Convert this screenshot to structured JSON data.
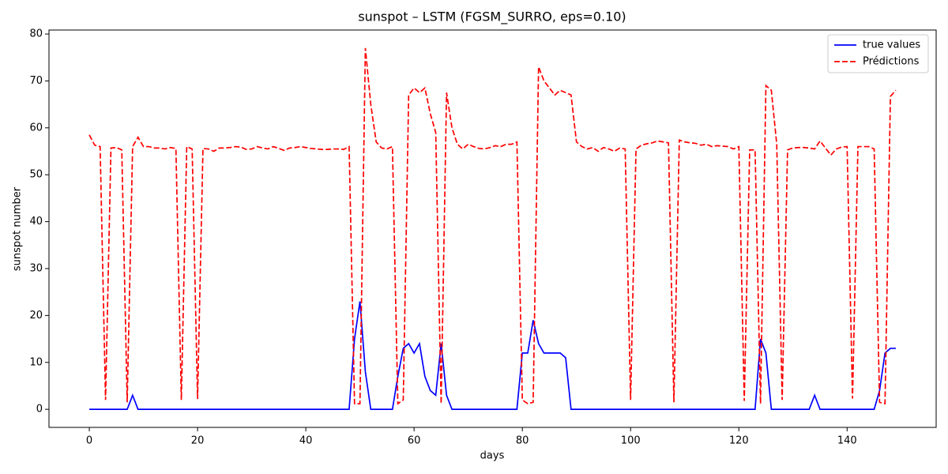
{
  "chart_data": {
    "type": "line",
    "title": "sunspot – LSTM (FGSM_SURRO, eps=0.10)",
    "x_label": "days",
    "y_label": "sunspot number",
    "x": [
      0,
      1,
      2,
      3,
      4,
      5,
      6,
      7,
      8,
      9,
      10,
      11,
      12,
      13,
      14,
      15,
      16,
      17,
      18,
      19,
      20,
      21,
      22,
      23,
      24,
      25,
      26,
      27,
      28,
      29,
      30,
      31,
      32,
      33,
      34,
      35,
      36,
      37,
      38,
      39,
      40,
      41,
      42,
      43,
      44,
      45,
      46,
      47,
      48,
      49,
      50,
      51,
      52,
      53,
      54,
      55,
      56,
      57,
      58,
      59,
      60,
      61,
      62,
      63,
      64,
      65,
      66,
      67,
      68,
      69,
      70,
      71,
      72,
      73,
      74,
      75,
      76,
      77,
      78,
      79,
      80,
      81,
      82,
      83,
      84,
      85,
      86,
      87,
      88,
      89,
      90,
      91,
      92,
      93,
      94,
      95,
      96,
      97,
      98,
      99,
      100,
      101,
      102,
      103,
      104,
      105,
      106,
      107,
      108,
      109,
      110,
      111,
      112,
      113,
      114,
      115,
      116,
      117,
      118,
      119,
      120,
      121,
      122,
      123,
      124,
      125,
      126,
      127,
      128,
      129,
      130,
      131,
      132,
      133,
      134,
      135,
      136,
      137,
      138,
      139,
      140,
      141,
      142,
      143,
      144,
      145,
      146,
      147,
      148,
      149
    ],
    "series": [
      {
        "name": "true values",
        "color": "#0000ff",
        "dash": "solid",
        "values": [
          0,
          0,
          0,
          0,
          0,
          0,
          0,
          0,
          3,
          0,
          0,
          0,
          0,
          0,
          0,
          0,
          0,
          0,
          0,
          0,
          0,
          0,
          0,
          0,
          0,
          0,
          0,
          0,
          0,
          0,
          0,
          0,
          0,
          0,
          0,
          0,
          0,
          0,
          0,
          0,
          0,
          0,
          0,
          0,
          0,
          0,
          0,
          0,
          0,
          15,
          23,
          8,
          0,
          0,
          0,
          0,
          0,
          7,
          13,
          14,
          12,
          14,
          7,
          4,
          3,
          14,
          3,
          0,
          0,
          0,
          0,
          0,
          0,
          0,
          0,
          0,
          0,
          0,
          0,
          0,
          12,
          12,
          19,
          14,
          12,
          12,
          12,
          12,
          11,
          0,
          0,
          0,
          0,
          0,
          0,
          0,
          0,
          0,
          0,
          0,
          0,
          0,
          0,
          0,
          0,
          0,
          0,
          0,
          0,
          0,
          0,
          0,
          0,
          0,
          0,
          0,
          0,
          0,
          0,
          0,
          0,
          0,
          0,
          0,
          15,
          12,
          0,
          0,
          0,
          0,
          0,
          0,
          0,
          0,
          3,
          0,
          0,
          0,
          0,
          0,
          0,
          0,
          0,
          0,
          0,
          0,
          4,
          12,
          13,
          13
        ]
      },
      {
        "name": "Prédictions",
        "color": "#ff0000",
        "dash": "dashed",
        "values": [
          58.5,
          56.3,
          56,
          2,
          55.7,
          55.8,
          55.3,
          1.5,
          56,
          58,
          56,
          56,
          55.7,
          55.7,
          55.5,
          55.8,
          55.6,
          2,
          56,
          55.5,
          2.2,
          55.6,
          55.5,
          55,
          55.7,
          55.7,
          55.8,
          56,
          55.9,
          55.4,
          55.5,
          56,
          55.7,
          55.5,
          56,
          55.6,
          55.2,
          55.7,
          55.8,
          56,
          55.8,
          55.6,
          55.5,
          55.4,
          55.4,
          55.5,
          55.5,
          55.4,
          56,
          1.2,
          1.2,
          77,
          65,
          57,
          55.7,
          55.5,
          56,
          1.2,
          2,
          67,
          68.5,
          67.5,
          68.5,
          63,
          59,
          1.2,
          67.5,
          60,
          56.5,
          55.5,
          56.5,
          56,
          55.6,
          55.5,
          55.8,
          56.2,
          56,
          56.5,
          56.5,
          57,
          2,
          1.2,
          1.5,
          73,
          70,
          68.5,
          67,
          68,
          67.5,
          67,
          57,
          56,
          55.5,
          55.8,
          55,
          55.8,
          55.5,
          55,
          55.7,
          55.5,
          2,
          55.5,
          56.3,
          56.6,
          56.8,
          57.2,
          57,
          56.8,
          1.5,
          57.4,
          57,
          56.8,
          56.7,
          56.3,
          56.5,
          56,
          56.2,
          56.1,
          56,
          55.5,
          56,
          1.8,
          55.3,
          55.3,
          1.2,
          69,
          68,
          56.5,
          2,
          55.3,
          55.7,
          55.8,
          55.8,
          55.7,
          55.5,
          57.2,
          55.7,
          54.2,
          55.5,
          55.9,
          56,
          2.3,
          56,
          56,
          56,
          55.5,
          1.5,
          1.2,
          66.7,
          68
        ]
      }
    ],
    "xlim": [
      -7.45,
      156.45
    ],
    "xticks": [
      0,
      20,
      40,
      60,
      80,
      100,
      120,
      140
    ],
    "ylim": [
      -3.85,
      80.85
    ],
    "yticks": [
      0,
      10,
      20,
      30,
      40,
      50,
      60,
      70,
      80
    ],
    "grid": false,
    "legend": "upper right"
  }
}
